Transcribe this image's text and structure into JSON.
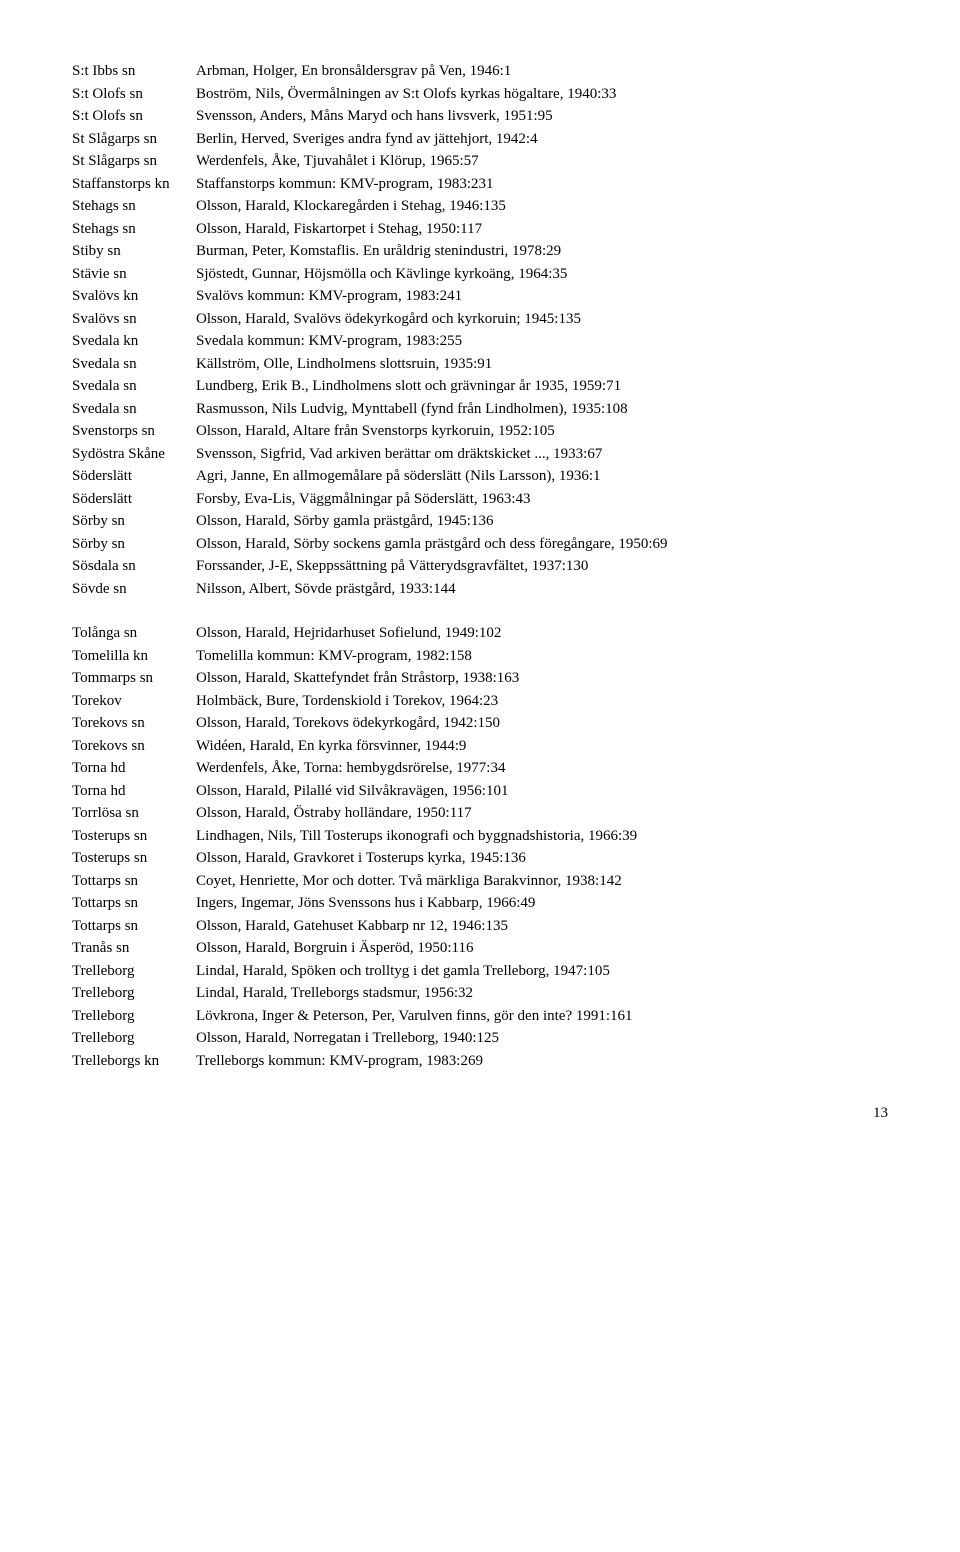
{
  "rows": [
    {
      "loc": "S:t Ibbs sn",
      "desc": "Arbman, Holger, En bronsåldersgrav på Ven, 1946:1"
    },
    {
      "loc": "S:t Olofs sn",
      "desc": "Boström, Nils, Övermålningen av S:t Olofs kyrkas högaltare, 1940:33"
    },
    {
      "loc": "S:t Olofs sn",
      "desc": "Svensson, Anders, Måns Maryd och hans livsverk, 1951:95"
    },
    {
      "loc": "St Slågarps sn",
      "desc": "Berlin, Herved, Sveriges andra fynd av jättehjort, 1942:4"
    },
    {
      "loc": "St Slågarps sn",
      "desc": "Werdenfels, Åke, Tjuvahålet i Klörup, 1965:57"
    },
    {
      "loc": "Staffanstorps kn",
      "desc": "Staffanstorps kommun: KMV-program, 1983:231"
    },
    {
      "loc": "Stehags sn",
      "desc": "Olsson, Harald, Klockaregården i Stehag, 1946:135"
    },
    {
      "loc": "Stehags sn",
      "desc": "Olsson, Harald, Fiskartorpet i Stehag, 1950:117"
    },
    {
      "loc": "Stiby sn",
      "desc": "Burman, Peter, Komstaflis. En uråldrig stenindustri, 1978:29"
    },
    {
      "loc": "Stävie sn",
      "desc": "Sjöstedt, Gunnar, Höjsmölla och Kävlinge kyrkoäng, 1964:35"
    },
    {
      "loc": "Svalövs kn",
      "desc": "Svalövs kommun: KMV-program, 1983:241"
    },
    {
      "loc": "Svalövs sn",
      "desc": "Olsson, Harald, Svalövs ödekyrkogård och kyrkoruin; 1945:135"
    },
    {
      "loc": "Svedala kn",
      "desc": "Svedala kommun: KMV-program, 1983:255"
    },
    {
      "loc": "Svedala sn",
      "desc": "Källström, Olle, Lindholmens slottsruin, 1935:91"
    },
    {
      "loc": "Svedala sn",
      "desc": "Lundberg, Erik B., Lindholmens slott och grävningar år 1935, 1959:71"
    },
    {
      "loc": "Svedala sn",
      "desc": "Rasmusson, Nils Ludvig, Mynttabell (fynd från Lindholmen), 1935:108"
    },
    {
      "loc": "Svenstorps sn",
      "desc": "Olsson, Harald, Altare från Svenstorps kyrkoruin, 1952:105"
    },
    {
      "loc": "Sydöstra Skåne",
      "desc": "Svensson, Sigfrid, Vad arkiven berättar om dräktskicket ..., 1933:67"
    },
    {
      "loc": "Söderslätt",
      "desc": "Agri, Janne, En allmogemålare på söderslätt (Nils Larsson), 1936:1"
    },
    {
      "loc": "Söderslätt",
      "desc": "Forsby, Eva-Lis, Väggmålningar på Söderslätt, 1963:43"
    },
    {
      "loc": "Sörby sn",
      "desc": "Olsson, Harald, Sörby gamla prästgård, 1945:136"
    },
    {
      "loc": "Sörby sn",
      "desc": "Olsson, Harald, Sörby sockens gamla prästgård och dess föregångare, 1950:69"
    },
    {
      "loc": "Sösdala sn",
      "desc": "Forssander, J-E, Skeppssättning på Vätterydsgravfältet, 1937:130"
    },
    {
      "loc": "Sövde sn",
      "desc": "Nilsson, Albert, Sövde prästgård, 1933:144"
    },
    {
      "gap": true
    },
    {
      "loc": "Tolånga sn",
      "desc": "Olsson, Harald, Hejridarhuset Sofielund, 1949:102"
    },
    {
      "loc": "Tomelilla kn",
      "desc": "Tomelilla kommun: KMV-program, 1982:158"
    },
    {
      "loc": "Tommarps sn",
      "desc": "Olsson, Harald, Skattefyndet från Stråstorp, 1938:163"
    },
    {
      "loc": "Torekov",
      "desc": "Holmbäck, Bure, Tordenskiold i Torekov, 1964:23"
    },
    {
      "loc": "Torekovs sn",
      "desc": "Olsson, Harald, Torekovs ödekyrkogård, 1942:150"
    },
    {
      "loc": "Torekovs sn",
      "desc": "Widéen, Harald, En kyrka försvinner, 1944:9"
    },
    {
      "loc": "Torna hd",
      "desc": "Werdenfels, Åke, Torna: hembygdsrörelse, 1977:34"
    },
    {
      "loc": "Torna hd",
      "desc": "Olsson, Harald, Pilallé vid Silvåkravägen, 1956:101"
    },
    {
      "loc": "Torrlösa sn",
      "desc": "Olsson, Harald, Östraby holländare, 1950:117"
    },
    {
      "loc": "Tosterups sn",
      "desc": "Lindhagen, Nils, Till Tosterups ikonografi och byggnadshistoria, 1966:39"
    },
    {
      "loc": "Tosterups sn",
      "desc": "Olsson, Harald, Gravkoret i Tosterups kyrka, 1945:136"
    },
    {
      "loc": "Tottarps sn",
      "desc": "Coyet, Henriette, Mor och dotter. Två märkliga Barakvinnor, 1938:142"
    },
    {
      "loc": "Tottarps sn",
      "desc": "Ingers, Ingemar, Jöns Svenssons hus i Kabbarp, 1966:49"
    },
    {
      "loc": "Tottarps sn",
      "desc": "Olsson, Harald, Gatehuset Kabbarp nr 12, 1946:135"
    },
    {
      "loc": "Tranås sn",
      "desc": "Olsson, Harald, Borgruin i Äsperöd, 1950:116"
    },
    {
      "loc": "Trelleborg",
      "desc": "Lindal, Harald, Spöken och trolltyg i det gamla Trelleborg, 1947:105"
    },
    {
      "loc": "Trelleborg",
      "desc": "Lindal, Harald, Trelleborgs stadsmur, 1956:32"
    },
    {
      "loc": "Trelleborg",
      "desc": "Lövkrona, Inger & Peterson, Per, Varulven finns, gör den inte? 1991:161"
    },
    {
      "loc": "Trelleborg",
      "desc": "Olsson, Harald, Norregatan i Trelleborg, 1940:125"
    },
    {
      "loc": "Trelleborgs kn",
      "desc": "Trelleborgs kommun: KMV-program, 1983:269"
    }
  ],
  "page_number": "13"
}
